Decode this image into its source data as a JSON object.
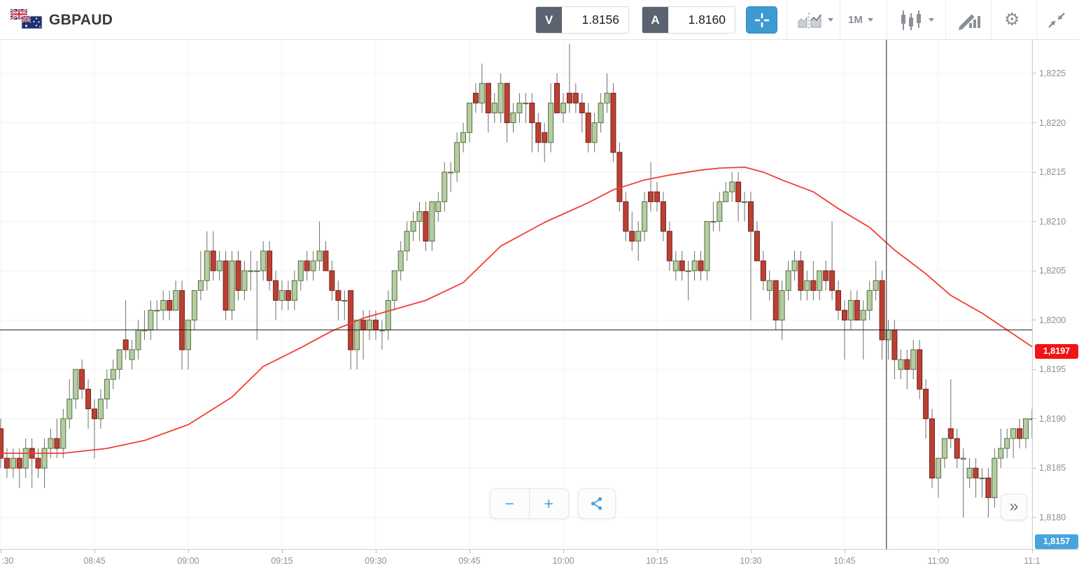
{
  "header": {
    "symbol": "GBPAUD",
    "sell": {
      "label": "V",
      "value": "1.8156"
    },
    "buy": {
      "label": "A",
      "value": "1.8160"
    },
    "timeframe": "1M"
  },
  "controls": {
    "zoom_out": "−",
    "zoom_in": "+",
    "fast_forward": "»"
  },
  "colors": {
    "accent_blue": "#3e9ad3",
    "candle_up_fill": "#b5cda2",
    "candle_up_stroke": "#56703f",
    "candle_down_fill": "#bb4034",
    "candle_down_stroke": "#752219",
    "wick": "#6e6e6e",
    "ma_line": "#ef3e36",
    "grid": "#f1f1f1",
    "crosshair": "#1b1b1b",
    "badge_red": "#f01414",
    "badge_blue": "#47a4dc"
  },
  "price_axis": {
    "ticks": [
      {
        "value": 1.8225,
        "label": "1,8225"
      },
      {
        "value": 1.822,
        "label": "1,8220"
      },
      {
        "value": 1.8215,
        "label": "1,8215"
      },
      {
        "value": 1.821,
        "label": "1,8210"
      },
      {
        "value": 1.8205,
        "label": "1,8205"
      },
      {
        "value": 1.82,
        "label": "1,8200"
      },
      {
        "value": 1.8195,
        "label": "1,8195"
      },
      {
        "value": 1.819,
        "label": "1,8190"
      },
      {
        "value": 1.8185,
        "label": "1,8185"
      },
      {
        "value": 1.818,
        "label": "1,8180"
      }
    ]
  },
  "time_axis": {
    "ticks": [
      {
        "minute": 0,
        "label": ":30"
      },
      {
        "minute": 15,
        "label": "08:45"
      },
      {
        "minute": 30,
        "label": "09:00"
      },
      {
        "minute": 45,
        "label": "09:15"
      },
      {
        "minute": 60,
        "label": "09:30"
      },
      {
        "minute": 75,
        "label": "09:45"
      },
      {
        "minute": 90,
        "label": "10:00"
      },
      {
        "minute": 105,
        "label": "10:15"
      },
      {
        "minute": 120,
        "label": "10:30"
      },
      {
        "minute": 135,
        "label": "10:45"
      },
      {
        "minute": 150,
        "label": "11:00"
      },
      {
        "minute": 165,
        "label": "11:1"
      }
    ]
  },
  "badges": {
    "last_price": {
      "label": "1,8197",
      "value": 1.81968
    },
    "pinned_low": {
      "label": "1,8157"
    }
  },
  "chart_data": {
    "type": "candlestick",
    "symbol": "GBPAUD",
    "interval": "1 minute",
    "start_time": "08:30",
    "end_time": "11:15",
    "ylim": [
      1.81768,
      1.82284
    ],
    "crosshair": {
      "time": "10:52",
      "time_index": 141.7,
      "price": 1.8199
    },
    "candles": [
      [
        1.8189,
        1.819,
        1.8185,
        1.8186
      ],
      [
        1.8186,
        1.8187,
        1.8184,
        1.8185
      ],
      [
        1.8185,
        1.8187,
        1.8184,
        1.8186
      ],
      [
        1.8186,
        1.8187,
        1.8183,
        1.8185
      ],
      [
        1.8185,
        1.8188,
        1.8184,
        1.8187
      ],
      [
        1.8187,
        1.8188,
        1.8183,
        1.8186
      ],
      [
        1.8186,
        1.8187,
        1.8184,
        1.8185
      ],
      [
        1.8185,
        1.8188,
        1.8183,
        1.8187
      ],
      [
        1.8187,
        1.8189,
        1.8186,
        1.8188
      ],
      [
        1.8188,
        1.819,
        1.8186,
        1.8187
      ],
      [
        1.8187,
        1.8191,
        1.8186,
        1.819
      ],
      [
        1.819,
        1.8194,
        1.8189,
        1.8192
      ],
      [
        1.8192,
        1.8195,
        1.8191,
        1.8195
      ],
      [
        1.8195,
        1.8196,
        1.8192,
        1.8193
      ],
      [
        1.8193,
        1.8194,
        1.8189,
        1.8191
      ],
      [
        1.8191,
        1.8192,
        1.8186,
        1.819
      ],
      [
        1.819,
        1.8193,
        1.8189,
        1.8192
      ],
      [
        1.8192,
        1.8195,
        1.8191,
        1.8194
      ],
      [
        1.8194,
        1.8196,
        1.8193,
        1.8195
      ],
      [
        1.8195,
        1.8197,
        1.8194,
        1.8197
      ],
      [
        1.8198,
        1.8202,
        1.8196,
        1.8197
      ],
      [
        1.8196,
        1.8198,
        1.8195,
        1.8197
      ],
      [
        1.8197,
        1.82,
        1.8196,
        1.8199
      ],
      [
        1.8199,
        1.8201,
        1.8198,
        1.8199
      ],
      [
        1.8199,
        1.8202,
        1.8198,
        1.8201
      ],
      [
        1.8201,
        1.8202,
        1.8199,
        1.8201
      ],
      [
        1.8201,
        1.8203,
        1.82,
        1.8202
      ],
      [
        1.8202,
        1.8203,
        1.82,
        1.8201
      ],
      [
        1.8201,
        1.8204,
        1.8201,
        1.8203
      ],
      [
        1.8203,
        1.8204,
        1.8195,
        1.8197
      ],
      [
        1.8197,
        1.82,
        1.8195,
        1.82
      ],
      [
        1.82,
        1.8203,
        1.8199,
        1.8203
      ],
      [
        1.8203,
        1.8207,
        1.8202,
        1.8204
      ],
      [
        1.8204,
        1.8209,
        1.8203,
        1.8207
      ],
      [
        1.8207,
        1.8209,
        1.8204,
        1.8205
      ],
      [
        1.8205,
        1.8207,
        1.8204,
        1.8206
      ],
      [
        1.8206,
        1.8207,
        1.82,
        1.8201
      ],
      [
        1.8201,
        1.8207,
        1.82,
        1.8206
      ],
      [
        1.8206,
        1.8207,
        1.8202,
        1.8203
      ],
      [
        1.8203,
        1.8206,
        1.8202,
        1.8205
      ],
      [
        1.8205,
        1.8207,
        1.8203,
        1.8205
      ],
      [
        1.8205,
        1.8206,
        1.8198,
        1.8205
      ],
      [
        1.8205,
        1.8208,
        1.8204,
        1.8207
      ],
      [
        1.8207,
        1.8208,
        1.8203,
        1.8204
      ],
      [
        1.8204,
        1.8205,
        1.82,
        1.8202
      ],
      [
        1.8202,
        1.8204,
        1.8201,
        1.8203
      ],
      [
        1.8203,
        1.8204,
        1.8201,
        1.8202
      ],
      [
        1.8202,
        1.8205,
        1.8201,
        1.8204
      ],
      [
        1.8204,
        1.8206,
        1.8203,
        1.8206
      ],
      [
        1.8206,
        1.8207,
        1.8204,
        1.8205
      ],
      [
        1.8205,
        1.8207,
        1.8204,
        1.8206
      ],
      [
        1.8206,
        1.821,
        1.8205,
        1.8207
      ],
      [
        1.8207,
        1.8208,
        1.8205,
        1.8205
      ],
      [
        1.8205,
        1.8206,
        1.8202,
        1.8203
      ],
      [
        1.8203,
        1.8204,
        1.82,
        1.8202
      ],
      [
        1.8202,
        1.8203,
        1.82,
        1.8202
      ],
      [
        1.8203,
        1.8203,
        1.8195,
        1.8197
      ],
      [
        1.8197,
        1.82,
        1.8195,
        1.82
      ],
      [
        1.82,
        1.8201,
        1.8196,
        1.8199
      ],
      [
        1.8199,
        1.8201,
        1.8198,
        1.82
      ],
      [
        1.82,
        1.8201,
        1.8198,
        1.8199
      ],
      [
        1.8199,
        1.82,
        1.8197,
        1.8199
      ],
      [
        1.8199,
        1.8203,
        1.8198,
        1.8202
      ],
      [
        1.8202,
        1.8205,
        1.8201,
        1.8205
      ],
      [
        1.8205,
        1.8208,
        1.8204,
        1.8207
      ],
      [
        1.8207,
        1.821,
        1.8206,
        1.8209
      ],
      [
        1.8209,
        1.8211,
        1.8208,
        1.821
      ],
      [
        1.821,
        1.8212,
        1.8208,
        1.8211
      ],
      [
        1.8211,
        1.8212,
        1.8207,
        1.8208
      ],
      [
        1.8208,
        1.8212,
        1.8207,
        1.8212
      ],
      [
        1.8211,
        1.8213,
        1.821,
        1.8212
      ],
      [
        1.8212,
        1.8216,
        1.8211,
        1.8215
      ],
      [
        1.8215,
        1.8216,
        1.8213,
        1.8215
      ],
      [
        1.8215,
        1.8219,
        1.8214,
        1.8218
      ],
      [
        1.8218,
        1.822,
        1.8217,
        1.8219
      ],
      [
        1.8219,
        1.8222,
        1.8218,
        1.8222
      ],
      [
        1.8223,
        1.8224,
        1.8221,
        1.8222
      ],
      [
        1.8222,
        1.8226,
        1.8221,
        1.8224
      ],
      [
        1.8224,
        1.8224,
        1.8219,
        1.8221
      ],
      [
        1.8221,
        1.8223,
        1.822,
        1.8222
      ],
      [
        1.8221,
        1.8225,
        1.822,
        1.8224
      ],
      [
        1.8224,
        1.8224,
        1.8218,
        1.822
      ],
      [
        1.822,
        1.8222,
        1.8219,
        1.8221
      ],
      [
        1.8221,
        1.8223,
        1.822,
        1.8222
      ],
      [
        1.8222,
        1.8223,
        1.822,
        1.8222
      ],
      [
        1.8222,
        1.8223,
        1.8217,
        1.822
      ],
      [
        1.822,
        1.8221,
        1.8217,
        1.8218
      ],
      [
        1.8219,
        1.822,
        1.8216,
        1.8218
      ],
      [
        1.8218,
        1.8224,
        1.8217,
        1.8222
      ],
      [
        1.8224,
        1.8225,
        1.8221,
        1.8221
      ],
      [
        1.8221,
        1.8223,
        1.822,
        1.8222
      ],
      [
        1.8223,
        1.8228,
        1.8221,
        1.8222
      ],
      [
        1.8223,
        1.8224,
        1.8221,
        1.8222
      ],
      [
        1.8222,
        1.8223,
        1.8219,
        1.8221
      ],
      [
        1.8221,
        1.8222,
        1.8217,
        1.8218
      ],
      [
        1.8218,
        1.8221,
        1.8217,
        1.822
      ],
      [
        1.822,
        1.8223,
        1.8219,
        1.8222
      ],
      [
        1.8222,
        1.8225,
        1.8221,
        1.8223
      ],
      [
        1.8223,
        1.8224,
        1.8216,
        1.8217
      ],
      [
        1.8217,
        1.8218,
        1.8211,
        1.8212
      ],
      [
        1.8212,
        1.8213,
        1.8208,
        1.8209
      ],
      [
        1.8209,
        1.8211,
        1.8207,
        1.8208
      ],
      [
        1.8208,
        1.821,
        1.8206,
        1.8209
      ],
      [
        1.8209,
        1.8213,
        1.8208,
        1.8212
      ],
      [
        1.8213,
        1.8216,
        1.8211,
        1.8212
      ],
      [
        1.8213,
        1.8214,
        1.8211,
        1.8212
      ],
      [
        1.8212,
        1.8213,
        1.8208,
        1.8209
      ],
      [
        1.8209,
        1.821,
        1.8205,
        1.8206
      ],
      [
        1.8205,
        1.8207,
        1.8204,
        1.8206
      ],
      [
        1.8206,
        1.8207,
        1.8204,
        1.8205
      ],
      [
        1.8205,
        1.8206,
        1.8202,
        1.8205
      ],
      [
        1.8205,
        1.8207,
        1.8204,
        1.8206
      ],
      [
        1.8206,
        1.8207,
        1.8204,
        1.8205
      ],
      [
        1.8205,
        1.821,
        1.8204,
        1.821
      ],
      [
        1.821,
        1.8212,
        1.8209,
        1.821
      ],
      [
        1.821,
        1.8213,
        1.8209,
        1.8212
      ],
      [
        1.8212,
        1.8214,
        1.8212,
        1.8213
      ],
      [
        1.8213,
        1.8215,
        1.8212,
        1.8214
      ],
      [
        1.8214,
        1.8215,
        1.821,
        1.8212
      ],
      [
        1.8212,
        1.8213,
        1.821,
        1.8212
      ],
      [
        1.8212,
        1.8213,
        1.82,
        1.8209
      ],
      [
        1.8209,
        1.821,
        1.8206,
        1.8206
      ],
      [
        1.8206,
        1.8207,
        1.8203,
        1.8204
      ],
      [
        1.8203,
        1.8205,
        1.8202,
        1.8204
      ],
      [
        1.8204,
        1.8204,
        1.8199,
        1.82
      ],
      [
        1.82,
        1.8204,
        1.8198,
        1.8203
      ],
      [
        1.8203,
        1.8206,
        1.8202,
        1.8205
      ],
      [
        1.8205,
        1.8207,
        1.8204,
        1.8206
      ],
      [
        1.8206,
        1.8207,
        1.8202,
        1.8203
      ],
      [
        1.8203,
        1.8205,
        1.8202,
        1.8204
      ],
      [
        1.8204,
        1.8206,
        1.8202,
        1.8203
      ],
      [
        1.8203,
        1.8205,
        1.8202,
        1.8205
      ],
      [
        1.8205,
        1.8206,
        1.8203,
        1.8204
      ],
      [
        1.8205,
        1.821,
        1.8202,
        1.8203
      ],
      [
        1.8203,
        1.8204,
        1.82,
        1.8201
      ],
      [
        1.8201,
        1.8202,
        1.8196,
        1.82
      ],
      [
        1.82,
        1.8203,
        1.8199,
        1.8202
      ],
      [
        1.8202,
        1.8203,
        1.82,
        1.82
      ],
      [
        1.82,
        1.8202,
        1.8196,
        1.8201
      ],
      [
        1.8201,
        1.8204,
        1.82,
        1.8203
      ],
      [
        1.8203,
        1.8206,
        1.8202,
        1.8204
      ],
      [
        1.8204,
        1.8205,
        1.8196,
        1.8198
      ],
      [
        1.8198,
        1.82,
        1.8196,
        1.8199
      ],
      [
        1.8199,
        1.82,
        1.8194,
        1.8196
      ],
      [
        1.8195,
        1.8197,
        1.8194,
        1.8196
      ],
      [
        1.8196,
        1.8197,
        1.8193,
        1.8195
      ],
      [
        1.8195,
        1.8198,
        1.8194,
        1.8197
      ],
      [
        1.8197,
        1.8198,
        1.8192,
        1.8193
      ],
      [
        1.8193,
        1.8194,
        1.8188,
        1.819
      ],
      [
        1.819,
        1.8191,
        1.8183,
        1.8184
      ],
      [
        1.8184,
        1.8186,
        1.8182,
        1.8186
      ],
      [
        1.8186,
        1.8188,
        1.8185,
        1.8188
      ],
      [
        1.8189,
        1.8194,
        1.8187,
        1.8188
      ],
      [
        1.8188,
        1.8189,
        1.8185,
        1.8186
      ],
      [
        1.8186,
        1.8187,
        1.818,
        1.8186
      ],
      [
        1.8184,
        1.8186,
        1.8183,
        1.8185
      ],
      [
        1.8185,
        1.8186,
        1.8182,
        1.8184
      ],
      [
        1.8184,
        1.8185,
        1.8182,
        1.8184
      ],
      [
        1.8184,
        1.8185,
        1.818,
        1.8182
      ],
      [
        1.8182,
        1.8187,
        1.8181,
        1.8186
      ],
      [
        1.8186,
        1.8189,
        1.8185,
        1.8187
      ],
      [
        1.8187,
        1.8189,
        1.8186,
        1.8188
      ],
      [
        1.8188,
        1.8189,
        1.8186,
        1.8189
      ],
      [
        1.8189,
        1.819,
        1.8187,
        1.8188
      ],
      [
        1.8188,
        1.819,
        1.8187,
        1.819
      ],
      [
        1.819,
        1.8191,
        1.8188,
        1.819
      ]
    ],
    "ma_line": {
      "name": "moving-average",
      "points": [
        [
          0,
          1.81865
        ],
        [
          10,
          1.81865
        ],
        [
          17,
          1.8187
        ],
        [
          23,
          1.81878
        ],
        [
          30,
          1.81894
        ],
        [
          37,
          1.81922
        ],
        [
          42,
          1.81953
        ],
        [
          48,
          1.81972
        ],
        [
          53,
          1.81989
        ],
        [
          58,
          1.82002
        ],
        [
          63,
          1.82011
        ],
        [
          68,
          1.8202
        ],
        [
          74,
          1.82038
        ],
        [
          80,
          1.82075
        ],
        [
          87,
          1.82099
        ],
        [
          94,
          1.82119
        ],
        [
          98,
          1.82132
        ],
        [
          103,
          1.82142
        ],
        [
          107,
          1.82147
        ],
        [
          112,
          1.82152
        ],
        [
          115,
          1.82154
        ],
        [
          119,
          1.82155
        ],
        [
          122,
          1.8215
        ],
        [
          125,
          1.82142
        ],
        [
          130,
          1.8213
        ],
        [
          134,
          1.82113
        ],
        [
          139,
          1.82094
        ],
        [
          143,
          1.82071
        ],
        [
          148,
          1.82047
        ],
        [
          152,
          1.82025
        ],
        [
          157,
          1.82007
        ],
        [
          161,
          1.8199
        ],
        [
          165.7,
          1.8197
        ]
      ]
    }
  }
}
